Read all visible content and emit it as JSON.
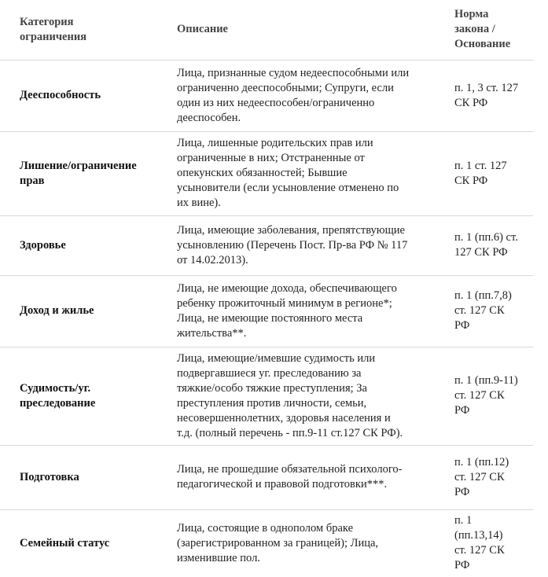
{
  "headers": {
    "category": "Категория\nограничения",
    "description": "Описание",
    "basis": "Норма\nзакона /\nОснование"
  },
  "rows": [
    {
      "category": "Дееспособность",
      "description": "Лица, признанные судом недееспособными или\nограниченно дееспособными; Супруги, если\nодин из них недееспособен/ограниченно\nдееспособен.",
      "basis": "п. 1, 3 ст. 127\nСК РФ"
    },
    {
      "category": "Лишение/ограничение\nправ",
      "description": "Лица, лишенные родительских прав или\nограниченные в них; Отстраненные от\nопекунских обязанностей; Бывшие\nусыновители (если усыновление отменено по\nих вине).",
      "basis": "п. 1 ст. 127\nСК РФ"
    },
    {
      "category": "Здоровье",
      "description": "Лица, имеющие заболевания, препятствующие\nусыновлению (Перечень Пост. Пр-ва РФ № 117\nот 14.02.2013).",
      "basis": "п. 1 (пп.6) ст.\n127 СК РФ"
    },
    {
      "category": "Доход и жилье",
      "description": "Лица, не имеющие дохода, обеспечивающего\nребенку прожиточный минимум в регионе*;\nЛица, не имеющие постоянного места\nжительства**.",
      "basis": "п. 1 (пп.7,8)\nст. 127 СК\nРФ"
    },
    {
      "category": "Судимость/уг.\nпреследование",
      "description": "Лица, имеющие/имевшие судимость или\nподвергавшиеся уг. преследованию за\nтяжкие/особо тяжкие преступления; За\nпреступления против личности, семьи,\nнесовершеннолетних, здоровья населения и\nт.д. (полный перечень - пп.9-11 ст.127 СК РФ).",
      "basis": "п. 1 (пп.9-11)\nст. 127 СК\nРФ"
    },
    {
      "category": "Подготовка",
      "description": "Лица, не прошедшие обязательной психолого-\nпедагогической и правовой подготовки***.",
      "basis": "п. 1 (пп.12)\nст. 127 СК\nРФ"
    },
    {
      "category": "Семейный статус",
      "description": "Лица, состоящие в однополом браке\n(зарегистрированном за границей); Лица,\nизменившие пол.",
      "basis": "п. 1\n(пп.13,14)\nст. 127 СК\nРФ"
    }
  ]
}
